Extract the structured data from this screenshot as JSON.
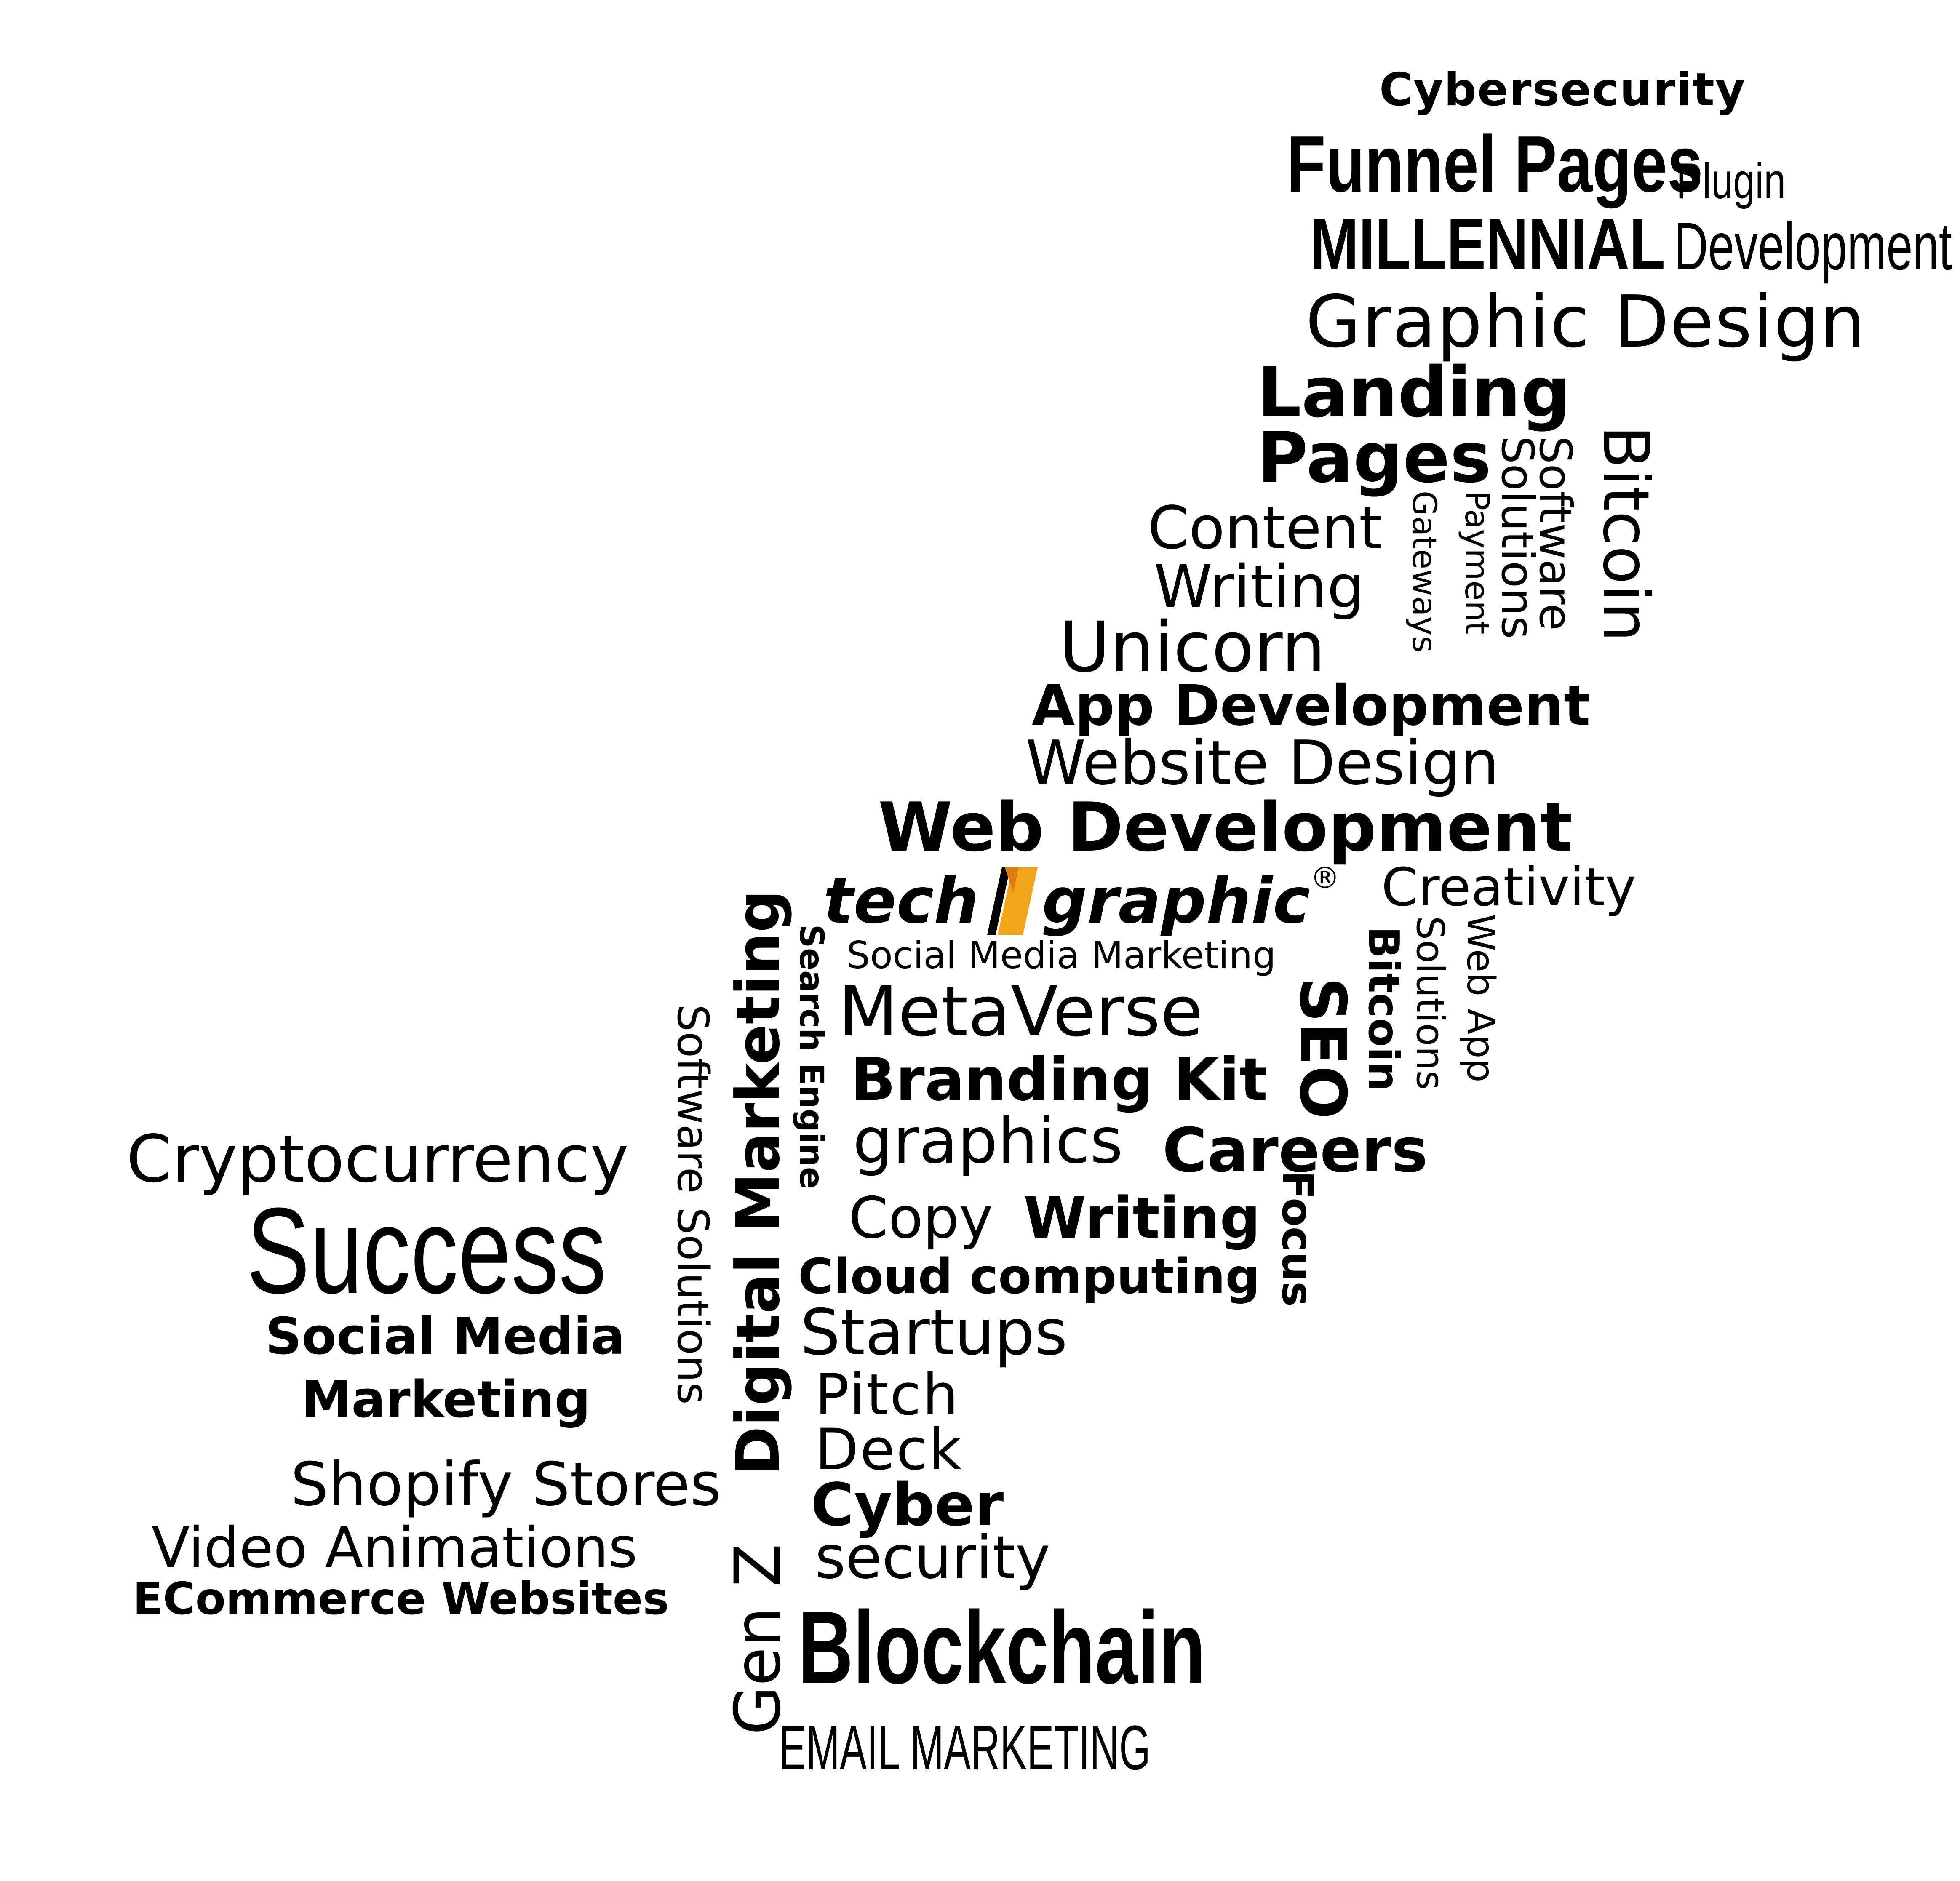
{
  "logo": {
    "left_text": "tech",
    "right_text": "graphic",
    "registered": "®",
    "accent_color": "#F2A51A"
  },
  "words": {
    "cybersecurity_top": "Cybersecurity",
    "funnel_pages": "Funnel Pages",
    "plugin": "Plugin",
    "millennial": "MILLENNIAL",
    "development": "Development",
    "graphic_design": "Graphic Design",
    "landing": "Landing",
    "pages": "Pages",
    "software_top": "Software",
    "solutions_top": "Solutions",
    "bitcoin_top": "Bitcoin",
    "payment": "Payment",
    "gateways": "Gateways",
    "content": "Content",
    "writing_top": "Writing",
    "unicorn": "Unicorn",
    "app_development": "App Development",
    "website_design": "Website Design",
    "web_development": "Web Development",
    "creativity": "Creativity",
    "social_media_marketing_small": "Social Media Marketing",
    "metaverse": "MetaVerse",
    "branding_kit": "Branding Kit",
    "graphics": "graphics",
    "careers": "Careers",
    "copy": "Copy",
    "writing_bold": "Writing",
    "cloud_computing": "Cloud computing",
    "startups": "Startups",
    "pitch": "Pitch",
    "deck": "Deck",
    "cyber": "Cyber",
    "security": "security",
    "blockchain": "Blockchain",
    "email_marketing": "EMAIL MARKETING",
    "cryptocurrency": "Cryptocurrency",
    "success": "Success",
    "social_media": "Social Media",
    "marketing": "Marketing",
    "shopify_stores": "Shopify Stores",
    "video_animations": "Video Animations",
    "ecommerce_websites": "ECommerce Websites",
    "software_solutions": "Software Solutions",
    "digital_marketing": "Digital Marketing",
    "search_engine": "Search Engine",
    "gen_z": "Gen Z",
    "seo": "SEO",
    "focus": "Focus",
    "bitcoin_mid": "Bitcoin",
    "solutions_mid": "Solutions",
    "web_app": "Web App"
  }
}
